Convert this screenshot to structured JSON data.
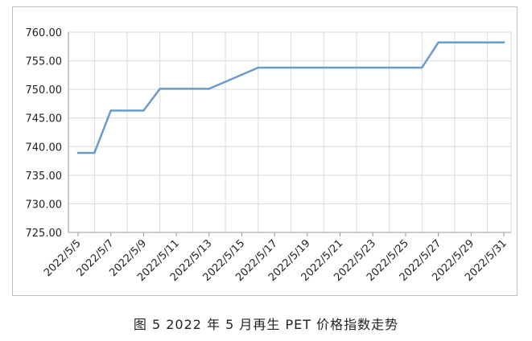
{
  "caption": "图 5  2022 年 5 月再生 PET 价格指数走势",
  "colors": {
    "series": "#6a9bcf",
    "grid": "#d9d9d9",
    "axis": "#9a9a9a"
  },
  "chart_data": {
    "type": "line",
    "title": "",
    "xlabel": "",
    "ylabel": "",
    "ylim": [
      725,
      760
    ],
    "yticks": [
      "725.00",
      "730.00",
      "735.00",
      "740.00",
      "745.00",
      "750.00",
      "755.00",
      "760.00"
    ],
    "xticks": [
      "2022/5/5",
      "2022/5/7",
      "2022/5/9",
      "2022/5/11",
      "2022/5/13",
      "2022/5/15",
      "2022/5/17",
      "2022/5/19",
      "2022/5/21",
      "2022/5/23",
      "2022/5/25",
      "2022/5/27",
      "2022/5/29",
      "2022/5/31"
    ],
    "grid": true,
    "legend": "none",
    "series": [
      {
        "x": [
          "2022/5/5",
          "2022/5/6",
          "2022/5/7",
          "2022/5/9",
          "2022/5/10",
          "2022/5/13",
          "2022/5/16",
          "2022/5/26",
          "2022/5/27",
          "2022/5/31"
        ],
        "values": [
          738.9,
          738.9,
          746.3,
          746.3,
          750.1,
          750.1,
          753.8,
          753.8,
          758.2,
          758.2
        ]
      }
    ]
  }
}
